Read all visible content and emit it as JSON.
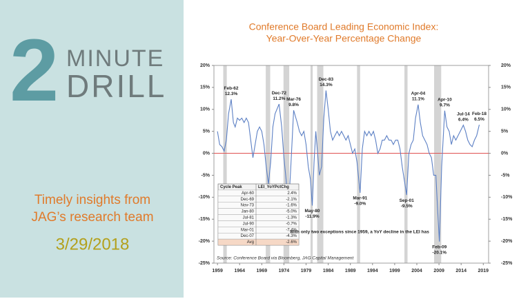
{
  "panel": {
    "number": "2",
    "word1": "MINUTE",
    "word2": "DRILL",
    "tagline1": "Timely insights from",
    "tagline2": "JAG’s research team",
    "date": "3/29/2018"
  },
  "chart_data": {
    "type": "line",
    "title": "Conference Board Leading Economic Index:",
    "subtitle": "Year-Over-Year Percentage Change",
    "xlim": [
      1958.2,
      2020.2
    ],
    "xticks": [
      1959,
      1964,
      1969,
      1974,
      1979,
      1984,
      1989,
      1994,
      1999,
      2004,
      2009,
      2014,
      2019
    ],
    "ylim": [
      -25,
      20
    ],
    "yticks": [
      {
        "value": 20,
        "label": "20%"
      },
      {
        "value": 15,
        "label": "15%"
      },
      {
        "value": 10,
        "label": "10%"
      },
      {
        "value": 5,
        "label": "5%"
      },
      {
        "value": 0,
        "label": "0%"
      },
      {
        "value": -5,
        "label": "-5%"
      },
      {
        "value": -10,
        "label": "-10%"
      },
      {
        "value": -15,
        "label": "-15%"
      },
      {
        "value": -20,
        "label": "-20%"
      },
      {
        "value": -25,
        "label": "-25%"
      }
    ],
    "y2lim": [
      -25,
      20
    ],
    "y2ticks": [
      {
        "value": 20,
        "label": "20%"
      },
      {
        "value": 15,
        "label": "15%"
      },
      {
        "value": 10,
        "label": "10%"
      },
      {
        "value": 5,
        "label": "5%"
      },
      {
        "value": 0,
        "label": "0%"
      },
      {
        "value": -5,
        "label": "-5%"
      },
      {
        "value": -10,
        "label": "-10%"
      },
      {
        "value": -15,
        "label": "-15%"
      },
      {
        "value": -20,
        "label": "-20%"
      },
      {
        "value": -25,
        "label": "-25%"
      }
    ],
    "zero_line_color": "#e05050",
    "shade_color": "#d4d4d4",
    "shaded_periods": [
      [
        1960.3,
        1961.1
      ],
      [
        1969.9,
        1970.9
      ],
      [
        1973.9,
        1975.2
      ],
      [
        1980.0,
        1980.5
      ],
      [
        1981.5,
        1982.9
      ],
      [
        1990.5,
        1991.2
      ],
      [
        2001.2,
        2001.9
      ],
      [
        2007.9,
        2009.5
      ]
    ],
    "series": [
      {
        "color": "#5b7fc4",
        "x": [
          1959.0,
          1959.5,
          1960.0,
          1960.5,
          1961.0,
          1961.5,
          1962.1,
          1962.6,
          1963.0,
          1963.5,
          1964.0,
          1964.5,
          1965.0,
          1965.5,
          1966.0,
          1966.5,
          1967.0,
          1967.5,
          1968.0,
          1968.5,
          1969.0,
          1969.5,
          1970.0,
          1970.5,
          1971.0,
          1971.5,
          1972.0,
          1972.9,
          1973.5,
          1974.0,
          1974.5,
          1975.0,
          1975.5,
          1976.2,
          1976.7,
          1977.0,
          1977.5,
          1978.0,
          1978.5,
          1979.0,
          1979.5,
          1980.0,
          1980.4,
          1980.8,
          1981.2,
          1981.6,
          1982.0,
          1982.5,
          1983.0,
          1983.5,
          1984.0,
          1984.5,
          1985.0,
          1985.5,
          1986.0,
          1986.5,
          1987.0,
          1987.5,
          1988.0,
          1988.5,
          1989.0,
          1989.5,
          1990.0,
          1990.5,
          1991.2,
          1991.7,
          1992.2,
          1992.7,
          1993.2,
          1993.7,
          1994.2,
          1994.7,
          1995.2,
          1995.7,
          1996.2,
          1996.7,
          1997.2,
          1997.7,
          1998.2,
          1998.7,
          1999.2,
          1999.7,
          2000.2,
          2000.7,
          2001.7,
          2002.2,
          2002.7,
          2003.2,
          2003.7,
          2004.3,
          2004.8,
          2005.3,
          2005.8,
          2006.3,
          2006.8,
          2007.3,
          2007.8,
          2008.3,
          2008.7,
          2009.1,
          2009.6,
          2010.3,
          2010.8,
          2011.3,
          2011.8,
          2012.3,
          2012.8,
          2013.3,
          2013.8,
          2014.5,
          2015.0,
          2015.5,
          2016.0,
          2016.5,
          2017.0,
          2017.5,
          2018.1
        ],
        "values": [
          5,
          2,
          1.5,
          0.5,
          3,
          9,
          12.3,
          7,
          6,
          8,
          7.5,
          8,
          7,
          8,
          7,
          3,
          -1,
          2,
          5,
          6,
          5,
          2,
          -3,
          -7,
          -2,
          6,
          9,
          11.2,
          6,
          -1,
          -6,
          -13,
          -4,
          9.8,
          8,
          7,
          5,
          4,
          5,
          2,
          -3,
          -6,
          -11.9,
          -2,
          5,
          0,
          -5,
          -3,
          8,
          14.3,
          10,
          5,
          3,
          4,
          5,
          4,
          5,
          4,
          3,
          4,
          2,
          0,
          1,
          -2,
          -9.0,
          1,
          5,
          4,
          5,
          4,
          5,
          3,
          0,
          1,
          3,
          3,
          4,
          3,
          3,
          2,
          3,
          3,
          1,
          -3,
          -9.5,
          0,
          2,
          3,
          8,
          11.1,
          7,
          4,
          3,
          2,
          0,
          -1,
          -5,
          -5,
          -13,
          -20.1,
          -3,
          9.7,
          6,
          5,
          2,
          4,
          3,
          4,
          5,
          6.4,
          5,
          3,
          2,
          1.5,
          3,
          4,
          6.5
        ]
      }
    ],
    "annotations": [
      {
        "label": "Feb-62",
        "value_label": "12.3%",
        "x": 1962.1,
        "y": 12.3,
        "pos": "above"
      },
      {
        "label": "Dec-72",
        "value_label": "11.2%",
        "x": 1972.9,
        "y": 11.2,
        "pos": "above"
      },
      {
        "label": "Mar-76",
        "value_label": "9.8%",
        "x": 1976.2,
        "y": 9.8,
        "pos": "above"
      },
      {
        "label": "Dec-83",
        "value_label": "14.3%",
        "x": 1983.5,
        "y": 14.3,
        "pos": "above"
      },
      {
        "label": "Apr-04",
        "value_label": "11.1%",
        "x": 2004.3,
        "y": 11.1,
        "pos": "above"
      },
      {
        "label": "Apr-10",
        "value_label": "9.7%",
        "x": 2010.3,
        "y": 9.7,
        "pos": "above"
      },
      {
        "label": "Jul-14",
        "value_label": "6.4%",
        "x": 2014.5,
        "y": 6.4,
        "pos": "above"
      },
      {
        "label": "Feb-18",
        "value_label": "6.5%",
        "x": 2018.1,
        "y": 6.5,
        "pos": "above"
      },
      {
        "label": "May-80",
        "value_label": "-11.9%",
        "x": 1980.4,
        "y": -11.9,
        "pos": "below"
      },
      {
        "label": "Mar-91",
        "value_label": "-9.0%",
        "x": 1991.2,
        "y": -9.0,
        "pos": "below"
      },
      {
        "label": "Sep-01",
        "value_label": "-9.5%",
        "x": 2001.7,
        "y": -9.5,
        "pos": "below"
      },
      {
        "label": "Feb-09",
        "value_label": "-20.1%",
        "x": 2009.1,
        "y": -20.1,
        "pos": "below"
      }
    ],
    "table": {
      "header": [
        "Cycle Peak",
        "LEI_YoYPctChg"
      ],
      "rows": [
        [
          "Apr-60",
          "2.4%"
        ],
        [
          "Dec-69",
          "-2.1%"
        ],
        [
          "Nov-73",
          "-1.6%"
        ],
        [
          "Jan-80",
          "-5.0%"
        ],
        [
          "Jul-81",
          "-1.3%"
        ],
        [
          "Jul-90",
          "-0.7%"
        ],
        [
          "Mar-01",
          "-7.4%"
        ],
        [
          "Dec-07",
          "-4.3%"
        ],
        [
          "Avg",
          "-2.6%"
        ]
      ]
    },
    "note": "With only two exceptions since 1959, a YoY decline in the LEI has",
    "source": "Source: Conference Board via Bloomberg, JAG Capital Management"
  }
}
